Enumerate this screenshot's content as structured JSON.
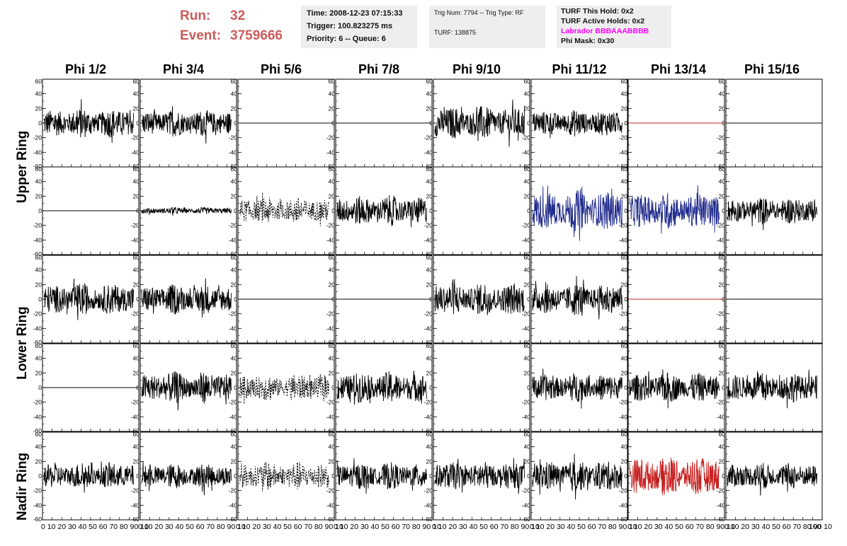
{
  "header": {
    "run_label": "Run:",
    "run_value": "32",
    "event_label": "Event:",
    "event_value": "3759666",
    "time_text": "Time: 2008-12-23 07:15:33",
    "trigger_text": "Trigger: 100.823275 ms",
    "priority_text": "Priority: 6 -- Queue: 6",
    "trig_num_text": "Trig Num: 7794 -- Trig Type: RF",
    "turf_text": "TURF: 138875",
    "turf_hold_text": "TURF This Hold: 0x2",
    "turf_active_text": "TURF Active Holds: 0x2",
    "labrador_text": "Labrador BBBAAABBBB",
    "phi_mask_text": "Phi Mask: 0x30"
  },
  "colors": {
    "run_text": "#cd5c5c",
    "labrador_text": "#ff00ff",
    "trace_default": "#000000",
    "trace_blue": "#1f2a8c",
    "trace_red": "#c82020"
  },
  "chart_data": {
    "type": "line",
    "columns": [
      "Phi 1/2",
      "Phi 3/4",
      "Phi 5/6",
      "Phi 7/8",
      "Phi 9/10",
      "Phi 11/12",
      "Phi 13/14",
      "Phi 15/16"
    ],
    "row_labels": [
      "Upper Ring",
      "Lower Ring",
      "Nadir Ring"
    ],
    "ylim": [
      -60,
      60
    ],
    "yticks": [
      "60",
      "40",
      "20",
      "0",
      "-20",
      "-40",
      "-60"
    ],
    "xlim": [
      0,
      100
    ],
    "xtick_label_strip": "0 10 20 30 40 50 60 70 80 90 10",
    "last_xtick_label": "100",
    "panels": [
      [
        {
          "style": "noise",
          "amp": 18,
          "color": "black"
        },
        {
          "style": "noise",
          "amp": 16,
          "color": "black"
        },
        {
          "style": "flat",
          "color": "black"
        },
        {
          "style": "flat",
          "color": "black"
        },
        {
          "style": "noise",
          "amp": 20,
          "color": "black"
        },
        {
          "style": "noise",
          "amp": 16,
          "color": "black"
        },
        {
          "style": "flat",
          "color": "red"
        },
        {
          "style": "flat",
          "color": "black"
        }
      ],
      [
        {
          "style": "flat",
          "color": "black"
        },
        {
          "style": "noise",
          "amp": 4,
          "color": "black"
        },
        {
          "style": "dashed",
          "amp": 16,
          "color": "black"
        },
        {
          "style": "noise",
          "amp": 18,
          "color": "black"
        },
        {
          "style": "none",
          "color": "black"
        },
        {
          "style": "noise",
          "amp": 24,
          "color": "blue"
        },
        {
          "style": "noise",
          "amp": 22,
          "color": "blue"
        },
        {
          "style": "noise",
          "amp": 16,
          "color": "black"
        }
      ],
      [
        {
          "style": "noise",
          "amp": 19,
          "color": "black"
        },
        {
          "style": "noise",
          "amp": 18,
          "color": "black"
        },
        {
          "style": "flat",
          "color": "black"
        },
        {
          "style": "flat",
          "color": "black"
        },
        {
          "style": "noise",
          "amp": 20,
          "color": "black"
        },
        {
          "style": "noise",
          "amp": 19,
          "color": "black"
        },
        {
          "style": "flat",
          "color": "red"
        },
        {
          "style": "flat",
          "color": "black"
        }
      ],
      [
        {
          "style": "flat",
          "color": "black"
        },
        {
          "style": "noise",
          "amp": 19,
          "color": "black"
        },
        {
          "style": "dashed",
          "amp": 16,
          "color": "black"
        },
        {
          "style": "noise",
          "amp": 19,
          "color": "black"
        },
        {
          "style": "none",
          "color": "black"
        },
        {
          "style": "noise",
          "amp": 17,
          "color": "black"
        },
        {
          "style": "noise",
          "amp": 18,
          "color": "black"
        },
        {
          "style": "noise",
          "amp": 18,
          "color": "black"
        }
      ],
      [
        {
          "style": "noise",
          "amp": 16,
          "color": "black"
        },
        {
          "style": "noise",
          "amp": 15,
          "color": "black"
        },
        {
          "style": "dashed",
          "amp": 17,
          "color": "black"
        },
        {
          "style": "noise",
          "amp": 16,
          "color": "black"
        },
        {
          "style": "noise",
          "amp": 17,
          "color": "black"
        },
        {
          "style": "noise",
          "amp": 19,
          "color": "black"
        },
        {
          "style": "noise",
          "amp": 24,
          "color": "red"
        },
        {
          "style": "noise",
          "amp": 16,
          "color": "black"
        }
      ]
    ]
  }
}
